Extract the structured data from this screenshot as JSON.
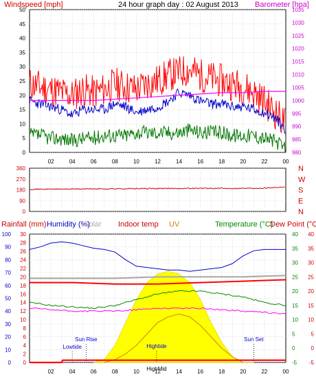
{
  "colors": {
    "wind_gust": "#ff0000",
    "wind_avg": "#007700",
    "barometer": "#ff00ff",
    "wind_dir": "#cc0000",
    "rainfall": "#ff0000",
    "humidity": "#0000cc",
    "solar": "#aaaaaa",
    "indoor_temp": "#ff0000",
    "uv": "#cc8800",
    "temperature": "#008800",
    "dew_point": "#ff0000",
    "sun_fill": "#ffff00",
    "grid": "#c0c0c0",
    "axis_blue": "#0000cc"
  },
  "chart_data": [
    {
      "type": "line",
      "title": "24 hour graph day : 02 August 2013",
      "left_label": "Windspeed [mph]",
      "right_label": "Barometer [hpa]",
      "y_left_ticks": [
        "50",
        "45",
        "40",
        "35",
        "30",
        "25",
        "20",
        "15",
        "10",
        "5",
        "0"
      ],
      "y_right_ticks": [
        "1035",
        "1030",
        "1025",
        "1020",
        "1015",
        "1010",
        "1005",
        "1000",
        "995",
        "990",
        "985",
        "980"
      ],
      "ylim_left": [
        0,
        50
      ],
      "ylim_right": [
        980,
        1035
      ],
      "x_ticks": [
        "02",
        "04",
        "06",
        "08",
        "10",
        "12",
        "14",
        "16",
        "18",
        "20",
        "22",
        "00"
      ],
      "series": [
        {
          "name": "Windspeed gust",
          "x": [
            0,
            1,
            2,
            3,
            4,
            5,
            6,
            7,
            8,
            9,
            10,
            11,
            12,
            13,
            14,
            15,
            16,
            17,
            18,
            19,
            20,
            21,
            22,
            23,
            24
          ],
          "values": [
            24,
            23,
            22,
            21,
            20,
            22,
            21,
            22,
            24,
            23,
            22,
            24,
            25,
            27,
            28,
            29,
            27,
            26,
            25,
            24,
            23,
            21,
            18,
            14,
            10
          ]
        },
        {
          "name": "Windspeed average",
          "x": [
            0,
            1,
            2,
            3,
            4,
            5,
            6,
            7,
            8,
            9,
            10,
            11,
            12,
            13,
            14,
            15,
            16,
            17,
            18,
            19,
            20,
            21,
            22,
            23,
            24
          ],
          "values": [
            6,
            6,
            5,
            5,
            4,
            5,
            5,
            6,
            6,
            6,
            7,
            7,
            7,
            7,
            7,
            8,
            7,
            7,
            7,
            6,
            6,
            6,
            5,
            4,
            1
          ]
        },
        {
          "name": "Wind average (blue)",
          "x": [
            0,
            1,
            2,
            3,
            4,
            5,
            6,
            7,
            8,
            9,
            10,
            11,
            12,
            13,
            14,
            15,
            16,
            17,
            18,
            19,
            20,
            21,
            22,
            23,
            24
          ],
          "values": [
            18,
            17,
            16,
            15,
            13,
            15,
            15,
            15,
            17,
            16,
            14,
            15,
            16,
            18,
            21,
            20,
            18,
            17,
            17,
            16,
            16,
            15,
            14,
            12,
            8
          ]
        },
        {
          "name": "Barometer",
          "x": [
            0,
            2,
            4,
            6,
            8,
            10,
            12,
            14,
            16,
            18,
            20,
            22,
            24
          ],
          "values": [
            1000,
            1000,
            1000,
            1000,
            1000.5,
            1001,
            1001.5,
            1002,
            1002.5,
            1003,
            1003,
            1003.5,
            1003.5
          ]
        }
      ]
    },
    {
      "type": "line",
      "title": "",
      "y_left_ticks": [
        "360",
        "270",
        "180",
        "90",
        "0"
      ],
      "y_right_ticks": [
        "N",
        "W",
        "S",
        "E",
        "N"
      ],
      "ylim": [
        0,
        360
      ],
      "x_ticks": [
        "02",
        "04",
        "06",
        "08",
        "10",
        "12",
        "14",
        "16",
        "18",
        "20",
        "22",
        "00"
      ],
      "series": [
        {
          "name": "Wind direction",
          "x": [
            0,
            2,
            4,
            6,
            8,
            10,
            12,
            14,
            16,
            18,
            20,
            22,
            24
          ],
          "values": [
            185,
            186,
            187,
            188,
            189,
            190,
            191,
            192,
            193,
            192,
            193,
            195,
            205
          ]
        }
      ]
    },
    {
      "type": "area",
      "legend": [
        "Rainfall (mm)",
        "Humidity (%)",
        "Solar",
        "Indoor temp",
        "UV",
        "Temperature (°C)",
        "Dew Point (°C)"
      ],
      "y_humidity_ticks": [
        "100",
        "90",
        "80",
        "70",
        "60",
        "50",
        "40",
        "30",
        "20",
        "10",
        "0"
      ],
      "y_rain_ticks": [
        "30",
        "28",
        "26",
        "24",
        "22",
        "20",
        "18",
        "16",
        "14",
        "12",
        "10",
        "8",
        "6",
        "4",
        "2",
        "0"
      ],
      "y_temp_left_ticks": [
        "40",
        "35",
        "30",
        "25",
        "20",
        "15",
        "10",
        "5",
        "0",
        "-5"
      ],
      "y_temp_right_ticks": [
        "40",
        "35",
        "30",
        "25",
        "20",
        "15",
        "10",
        "5",
        "0",
        "-5"
      ],
      "ylim_humidity": [
        0,
        100
      ],
      "ylim_temp": [
        -5,
        40
      ],
      "x_ticks": [
        "02",
        "04",
        "06",
        "08",
        "10",
        "12",
        "14",
        "16",
        "18",
        "20",
        "22",
        "00"
      ],
      "annotations": [
        "Lowtide",
        "Sun Rise",
        "Hightide",
        "HighMid",
        "Sun Set"
      ],
      "series": [
        {
          "name": "Humidity",
          "x": [
            0,
            1,
            2,
            3,
            4,
            5,
            6,
            7,
            8,
            9,
            10,
            11,
            12,
            13,
            14,
            15,
            16,
            17,
            18,
            19,
            20,
            21,
            22,
            23,
            24
          ],
          "values": [
            88,
            90,
            93,
            94,
            93,
            91,
            89,
            88,
            86,
            80,
            75,
            74,
            73,
            72,
            72,
            71,
            72,
            73,
            74,
            77,
            83,
            87,
            88,
            88,
            88
          ]
        },
        {
          "name": "Indoor temp",
          "x": [
            0,
            4,
            8,
            12,
            16,
            20,
            24
          ],
          "values": [
            23,
            23,
            22.5,
            22.5,
            23,
            23.5,
            24
          ]
        },
        {
          "name": "Solar",
          "x": [
            0,
            4,
            8,
            12,
            16,
            20,
            24
          ],
          "values": [
            24.5,
            24.5,
            24.5,
            25,
            25,
            25,
            25.5
          ]
        },
        {
          "name": "Temperature",
          "x": [
            0,
            2,
            4,
            6,
            8,
            10,
            12,
            14,
            16,
            18,
            20,
            22,
            24
          ],
          "values": [
            16,
            15,
            14.5,
            14,
            15,
            17,
            19,
            20,
            20,
            19,
            18,
            16,
            15
          ]
        },
        {
          "name": "Dew Point",
          "x": [
            0,
            2,
            4,
            6,
            8,
            10,
            12,
            14,
            16,
            18,
            20,
            22,
            24
          ],
          "values": [
            14,
            13.5,
            13,
            13,
            13,
            13.5,
            14,
            14,
            14,
            13.5,
            13,
            12.5,
            12
          ]
        },
        {
          "name": "Rainfall",
          "x": [
            0,
            3,
            3.1,
            24
          ],
          "values": [
            0,
            0,
            0.8,
            0.8
          ]
        },
        {
          "name": "Solar radiation",
          "x": [
            6,
            7,
            8,
            9,
            10,
            11,
            12,
            13,
            14,
            15,
            16,
            17,
            18,
            19,
            20,
            21
          ],
          "values": [
            0,
            1,
            6,
            14,
            22,
            28,
            31,
            32,
            31,
            28,
            22,
            14,
            7,
            2,
            0,
            0
          ]
        },
        {
          "name": "UV",
          "x": [
            7,
            8,
            9,
            10,
            11,
            12,
            13,
            14,
            15,
            16,
            17,
            18,
            19,
            20
          ],
          "values": [
            0,
            1,
            3,
            6,
            10,
            14,
            16,
            17,
            16,
            13,
            9,
            5,
            2,
            0
          ]
        }
      ]
    }
  ]
}
